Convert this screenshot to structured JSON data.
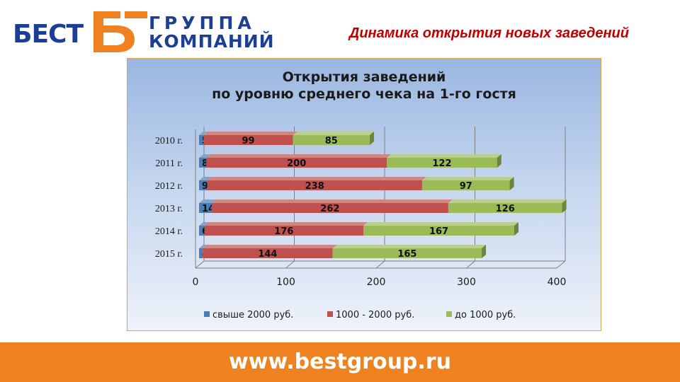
{
  "logo": {
    "brand": "БЕСТ",
    "line1": "ГРУППА",
    "line2": "КОМПАНИЙ",
    "colors": {
      "blue": "#1c3f95",
      "orange": "#ef8220"
    }
  },
  "slide_title": "Динамика открытия новых заведений",
  "footer": {
    "url": "www.bestgroup.ru",
    "color": "#ef8220"
  },
  "chart_data": {
    "type": "bar",
    "orientation": "horizontal",
    "stacked": true,
    "style": "3d",
    "title": [
      "Открытия заведений",
      "по уровню среднего чека на 1-го гостя"
    ],
    "categories": [
      "2010 г.",
      "2011 г.",
      "2012 г.",
      "2013 г.",
      "2014 г.",
      "2015 г."
    ],
    "series": [
      {
        "name": "свыше 2000 руб.",
        "color": "#4a7ebb",
        "values": [
          5,
          8,
          9,
          14,
          6,
          4
        ]
      },
      {
        "name": "1000 - 2000 руб.",
        "color": "#c0504d",
        "values": [
          99,
          200,
          238,
          262,
          176,
          144
        ]
      },
      {
        "name": "до 1000 руб.",
        "color": "#9bbb59",
        "values": [
          85,
          122,
          97,
          126,
          167,
          165
        ]
      }
    ],
    "xlim": [
      0,
      400
    ],
    "xticks": [
      0,
      100,
      200,
      300,
      400
    ],
    "grid": true,
    "legend": "bottom",
    "data_labels": true
  }
}
